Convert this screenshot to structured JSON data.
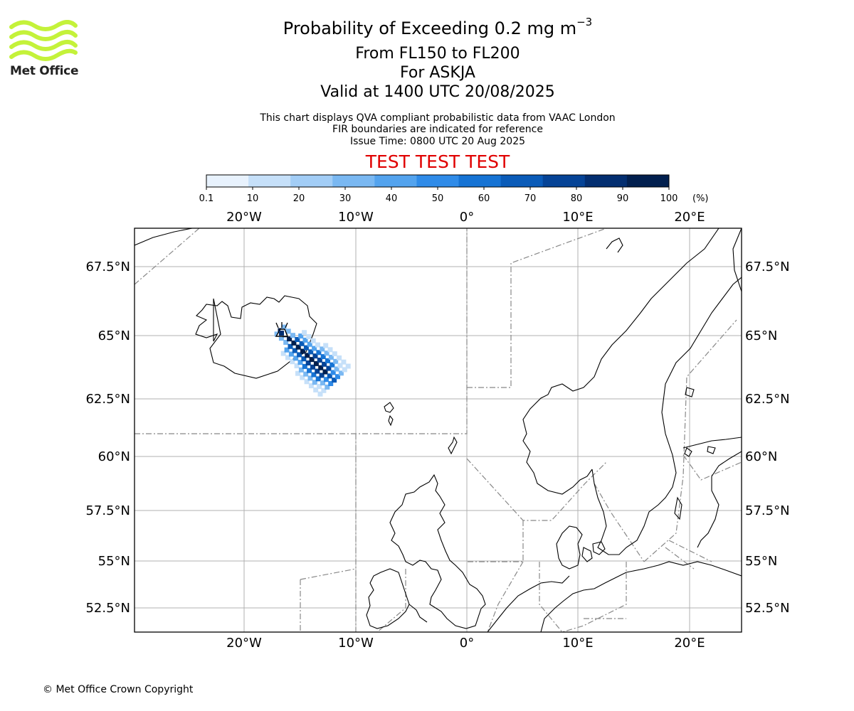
{
  "logo": {
    "text": "Met Office",
    "colors": {
      "waves": "#c4f23a",
      "text": "#222222"
    }
  },
  "title": {
    "prefix": "Probability of Exceeding 0.2 mg m",
    "exponent": "−3"
  },
  "subtitle_lines": [
    "From FL150 to FL200",
    "For ASKJA",
    "Valid at 1400 UTC 20/08/2025"
  ],
  "description": [
    "This chart displays QVA compliant probabilistic data from VAAC London",
    "FIR boundaries are indicated for reference",
    "Issue Time: 0800 UTC 20 Aug 2025"
  ],
  "test_banner": {
    "text": "TEST TEST TEST",
    "color": "#e00000"
  },
  "colorbar": {
    "ticks": [
      "0.1",
      "10",
      "20",
      "30",
      "40",
      "50",
      "60",
      "70",
      "80",
      "90",
      "100"
    ],
    "unit": "(%)",
    "colors": [
      "#e8f2fd",
      "#c6e0f9",
      "#a2cdf6",
      "#7ab8f2",
      "#53a3ee",
      "#2f8be8",
      "#1673d4",
      "#0a5bb8",
      "#054396",
      "#032e70",
      "#011f4e"
    ]
  },
  "map": {
    "lon_labels": [
      "20°W",
      "10°W",
      "0°",
      "10°E",
      "20°E"
    ],
    "lat_labels": [
      "67.5°N",
      "65°N",
      "62.5°N",
      "60°N",
      "57.5°N",
      "55°N",
      "52.5°N"
    ],
    "volcano": "ASKJA",
    "plume_note": "probability cells extend south-east from the volcano"
  },
  "copyright": "© Met Office Crown Copyright"
}
